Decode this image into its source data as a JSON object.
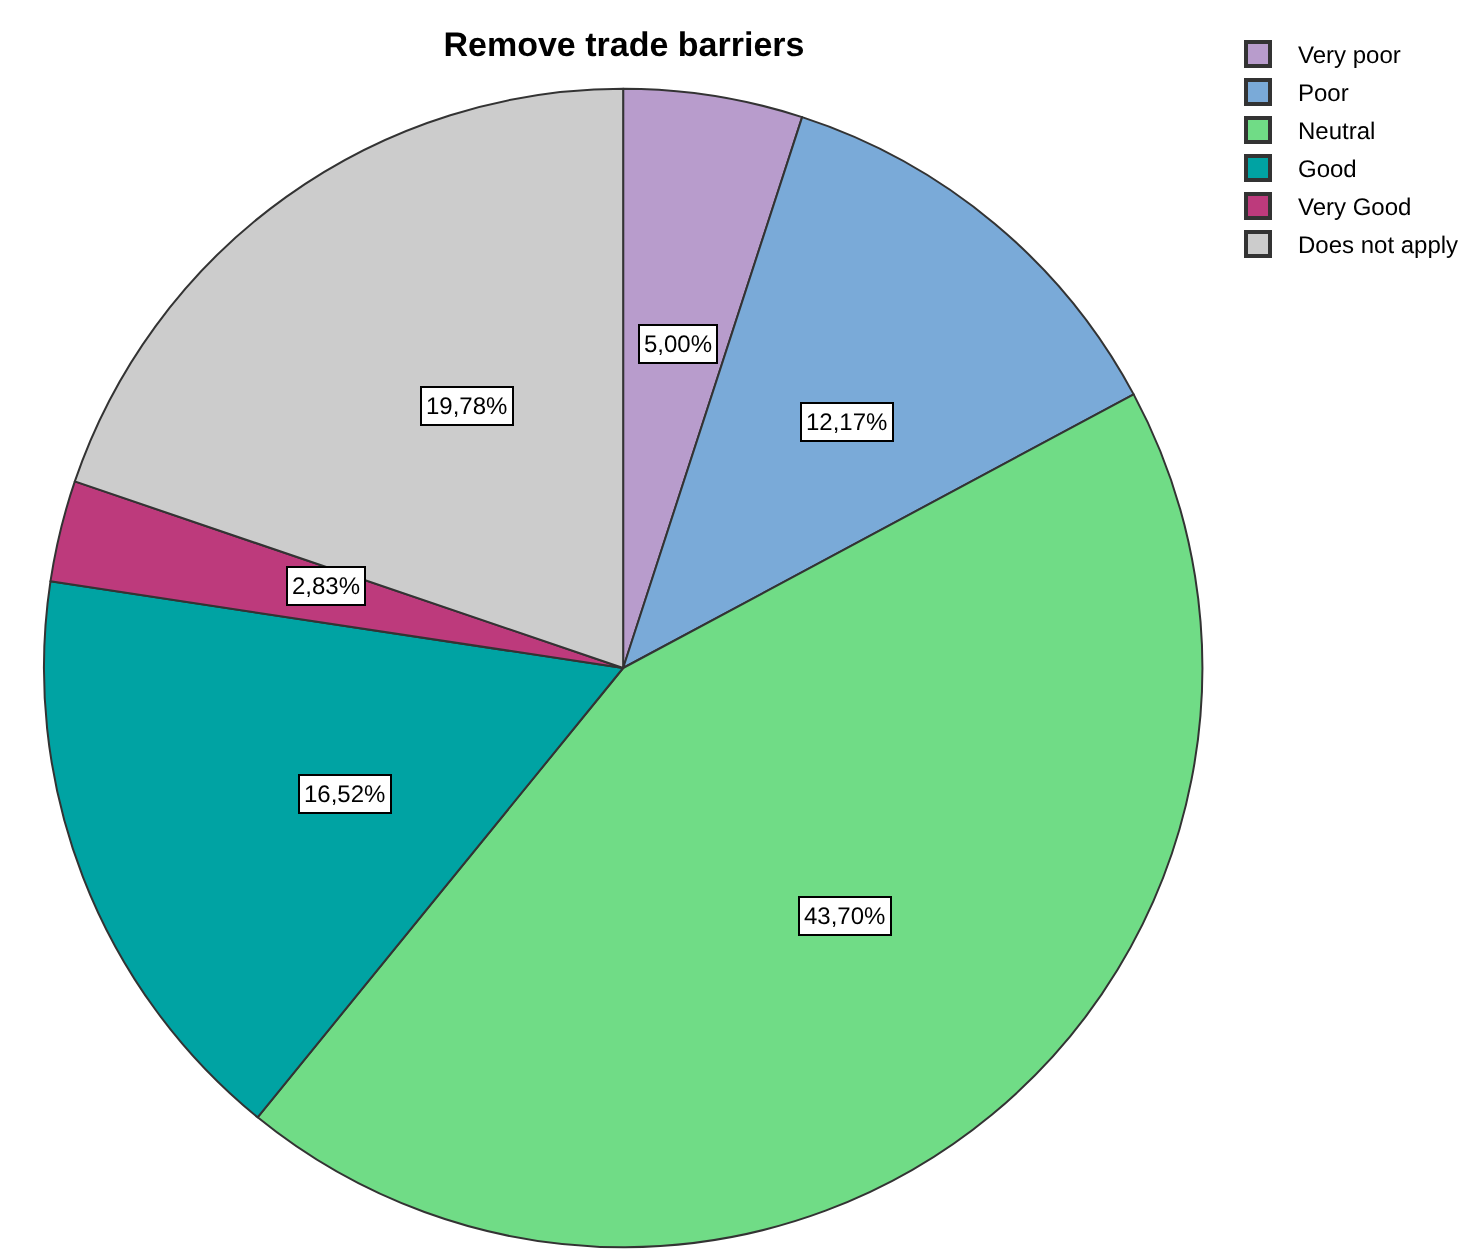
{
  "chart_data": {
    "type": "pie",
    "title": "Remove trade barriers",
    "categories": [
      "Very poor",
      "Poor",
      "Neutral",
      "Good",
      "Very Good",
      "Does not apply"
    ],
    "values": [
      5.0,
      12.17,
      43.7,
      16.52,
      2.83,
      19.78
    ],
    "value_labels": [
      "5,00%",
      "12,17%",
      "43,70%",
      "16,52%",
      "2,83%",
      "19,78%"
    ],
    "colors": [
      "#b89ccc",
      "#7aaad8",
      "#70dc86",
      "#00a3a3",
      "#bd3a7c",
      "#cccccc"
    ],
    "legend": "top right"
  }
}
